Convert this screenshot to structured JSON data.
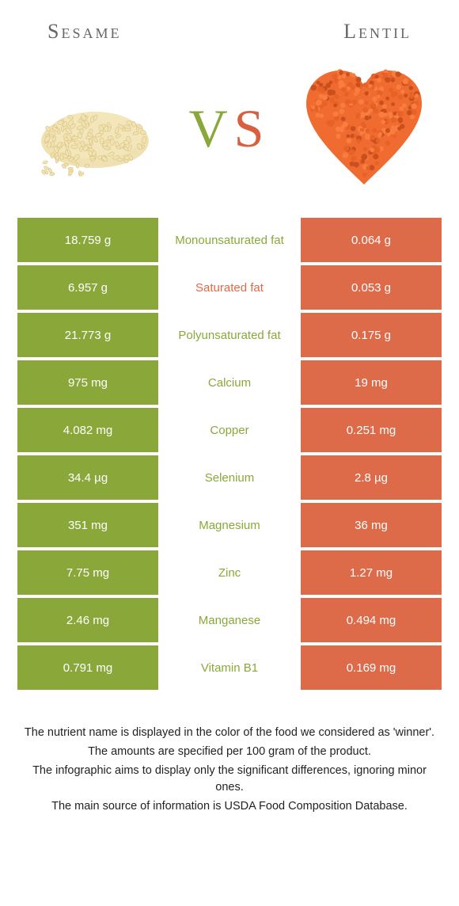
{
  "header": {
    "left_title": "Sesame",
    "right_title": "Lentil"
  },
  "vs": {
    "v": "V",
    "s": "S"
  },
  "colors": {
    "sesame": "#8aa83a",
    "lentil": "#dd6a49",
    "sesame_seed_fill": "#f1e2b0",
    "sesame_seed_stroke": "#d4bb7a",
    "lentil_fill": "#ef6b2f",
    "lentil_shadow": "#c9501e"
  },
  "rows": [
    {
      "left": "18.759 g",
      "label": "Monounsaturated fat",
      "right": "0.064 g",
      "winner": "sesame"
    },
    {
      "left": "6.957 g",
      "label": "Saturated fat",
      "right": "0.053 g",
      "winner": "lentil"
    },
    {
      "left": "21.773 g",
      "label": "Polyunsaturated fat",
      "right": "0.175 g",
      "winner": "sesame"
    },
    {
      "left": "975 mg",
      "label": "Calcium",
      "right": "19 mg",
      "winner": "sesame"
    },
    {
      "left": "4.082 mg",
      "label": "Copper",
      "right": "0.251 mg",
      "winner": "sesame"
    },
    {
      "left": "34.4 µg",
      "label": "Selenium",
      "right": "2.8 µg",
      "winner": "sesame"
    },
    {
      "left": "351 mg",
      "label": "Magnesium",
      "right": "36 mg",
      "winner": "sesame"
    },
    {
      "left": "7.75 mg",
      "label": "Zinc",
      "right": "1.27 mg",
      "winner": "sesame"
    },
    {
      "left": "2.46 mg",
      "label": "Manganese",
      "right": "0.494 mg",
      "winner": "sesame"
    },
    {
      "left": "0.791 mg",
      "label": "Vitamin B1",
      "right": "0.169 mg",
      "winner": "sesame"
    }
  ],
  "footer": [
    "The nutrient name is displayed in the color of the food we considered as 'winner'.",
    "The amounts are specified per 100 gram of the product.",
    "The infographic aims to display only the significant differences, ignoring minor ones.",
    "The main source of information is USDA Food Composition Database."
  ]
}
